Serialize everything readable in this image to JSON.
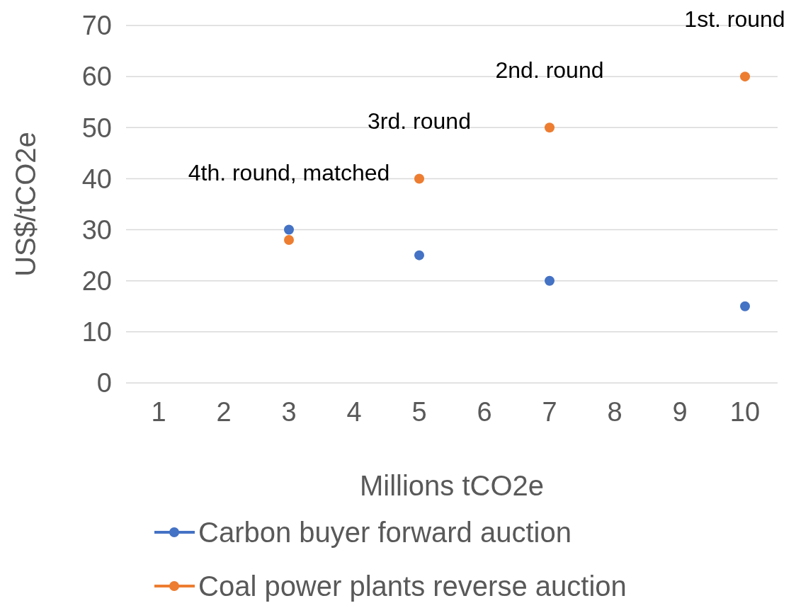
{
  "chart_data": {
    "type": "scatter",
    "xlabel": "Millions tCO2e",
    "ylabel": "US$/tCO2e",
    "categories": [
      "1",
      "2",
      "3",
      "4",
      "5",
      "6",
      "7",
      "8",
      "9",
      "10"
    ],
    "series": [
      {
        "name": "Carbon buyer forward auction",
        "color": "#4472c4",
        "values": [
          null,
          null,
          30,
          null,
          25,
          null,
          20,
          null,
          null,
          15
        ]
      },
      {
        "name": "Coal power plants reverse auction",
        "color": "#ed7d31",
        "values": [
          null,
          null,
          28,
          null,
          40,
          null,
          50,
          null,
          null,
          60
        ]
      }
    ],
    "annotations": [
      {
        "text": "1st. round",
        "x": "10",
        "y": 60
      },
      {
        "text": "2nd. round",
        "x": "7",
        "y": 50
      },
      {
        "text": "3rd. round",
        "x": "5",
        "y": 40
      },
      {
        "text": "4th. round, matched",
        "x": "3",
        "y": 30
      }
    ],
    "ylim": [
      0,
      70
    ],
    "yticks": [
      0,
      10,
      20,
      30,
      40,
      50,
      60,
      70
    ],
    "grid": "y",
    "legend": "bottom",
    "marker": "circle"
  }
}
